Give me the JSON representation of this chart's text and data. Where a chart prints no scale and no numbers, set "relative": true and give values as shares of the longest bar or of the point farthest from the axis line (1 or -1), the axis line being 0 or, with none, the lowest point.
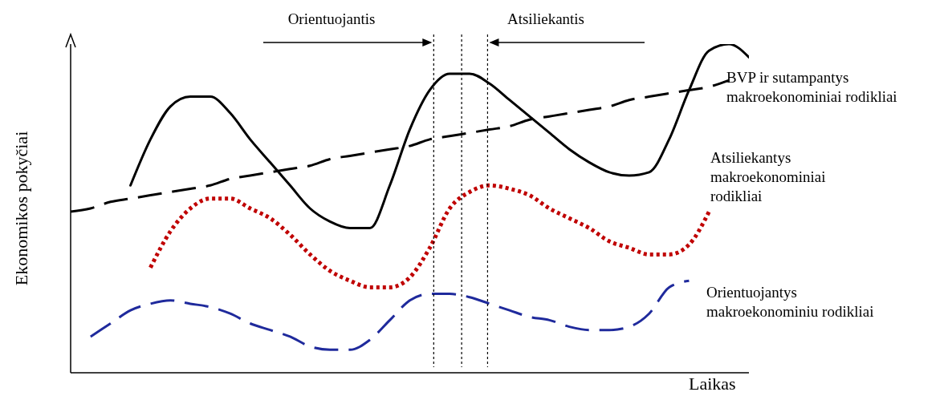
{
  "chart_data": {
    "type": "line",
    "relative": true,
    "xlabel": "Laikas",
    "ylabel": "Ekonomikos pokyčiai",
    "marker": "none",
    "categories": [
      null,
      null,
      null,
      null,
      null,
      null,
      null,
      null,
      null,
      null,
      null,
      null,
      null,
      null,
      null,
      null,
      null,
      null,
      null,
      null,
      null,
      null,
      null,
      null,
      null,
      null,
      null,
      null,
      null,
      null,
      null,
      null,
      null,
      null,
      null
    ],
    "series": [
      {
        "name": "BVP ir sutampantys makroekonominiai rodikliai",
        "color": "#000000",
        "line_style": "solid",
        "values": [
          null,
          null,
          null,
          0.57,
          0.71,
          0.81,
          0.84,
          0.84,
          0.79,
          0.71,
          0.64,
          0.57,
          0.5,
          0.46,
          0.44,
          0.44,
          0.57,
          0.74,
          0.86,
          0.91,
          0.91,
          0.88,
          0.83,
          0.78,
          0.73,
          0.68,
          0.64,
          0.61,
          0.6,
          0.61,
          0.71,
          0.86,
          0.98,
          1,
          0.96
        ]
      },
      {
        "color": "#000000",
        "line_style": "dashed",
        "values": [
          0.49,
          0.5,
          0.52,
          0.53,
          0.54,
          0.55,
          0.56,
          0.57,
          0.59,
          0.6,
          0.61,
          0.62,
          0.63,
          0.65,
          0.66,
          0.67,
          0.68,
          0.69,
          0.71,
          0.72,
          0.73,
          0.74,
          0.75,
          0.77,
          0.78,
          0.79,
          0.8,
          0.81,
          0.83,
          0.84,
          0.85,
          0.86,
          0.87,
          0.89,
          null
        ]
      },
      {
        "name": "Atsiliekantys makroekonominiai rodikliai",
        "color": "#c00000",
        "line_style": "dotted",
        "values": [
          null,
          null,
          null,
          null,
          0.32,
          0.43,
          0.5,
          0.53,
          0.53,
          0.5,
          0.47,
          0.42,
          0.36,
          0.31,
          0.28,
          0.26,
          0.26,
          0.29,
          0.38,
          0.5,
          0.55,
          0.57,
          0.56,
          0.54,
          0.5,
          0.47,
          0.44,
          0.4,
          0.38,
          0.36,
          0.36,
          0.39,
          0.49,
          null,
          null
        ]
      },
      {
        "name": "Orientuojantys makroekonominiu rodikliai",
        "color": "#1f2a9c",
        "line_style": "dashed",
        "values": [
          null,
          0.11,
          0.15,
          0.19,
          0.21,
          0.22,
          0.21,
          0.2,
          0.18,
          0.15,
          0.13,
          0.11,
          0.08,
          0.07,
          0.07,
          0.1,
          0.16,
          0.22,
          0.24,
          0.24,
          0.23,
          0.21,
          0.19,
          0.17,
          0.16,
          0.14,
          0.13,
          0.13,
          0.14,
          0.18,
          0.26,
          0.28,
          null,
          null,
          null
        ]
      }
    ],
    "annotations": [
      "Orientuojantis",
      "Atsiliekantis"
    ]
  }
}
